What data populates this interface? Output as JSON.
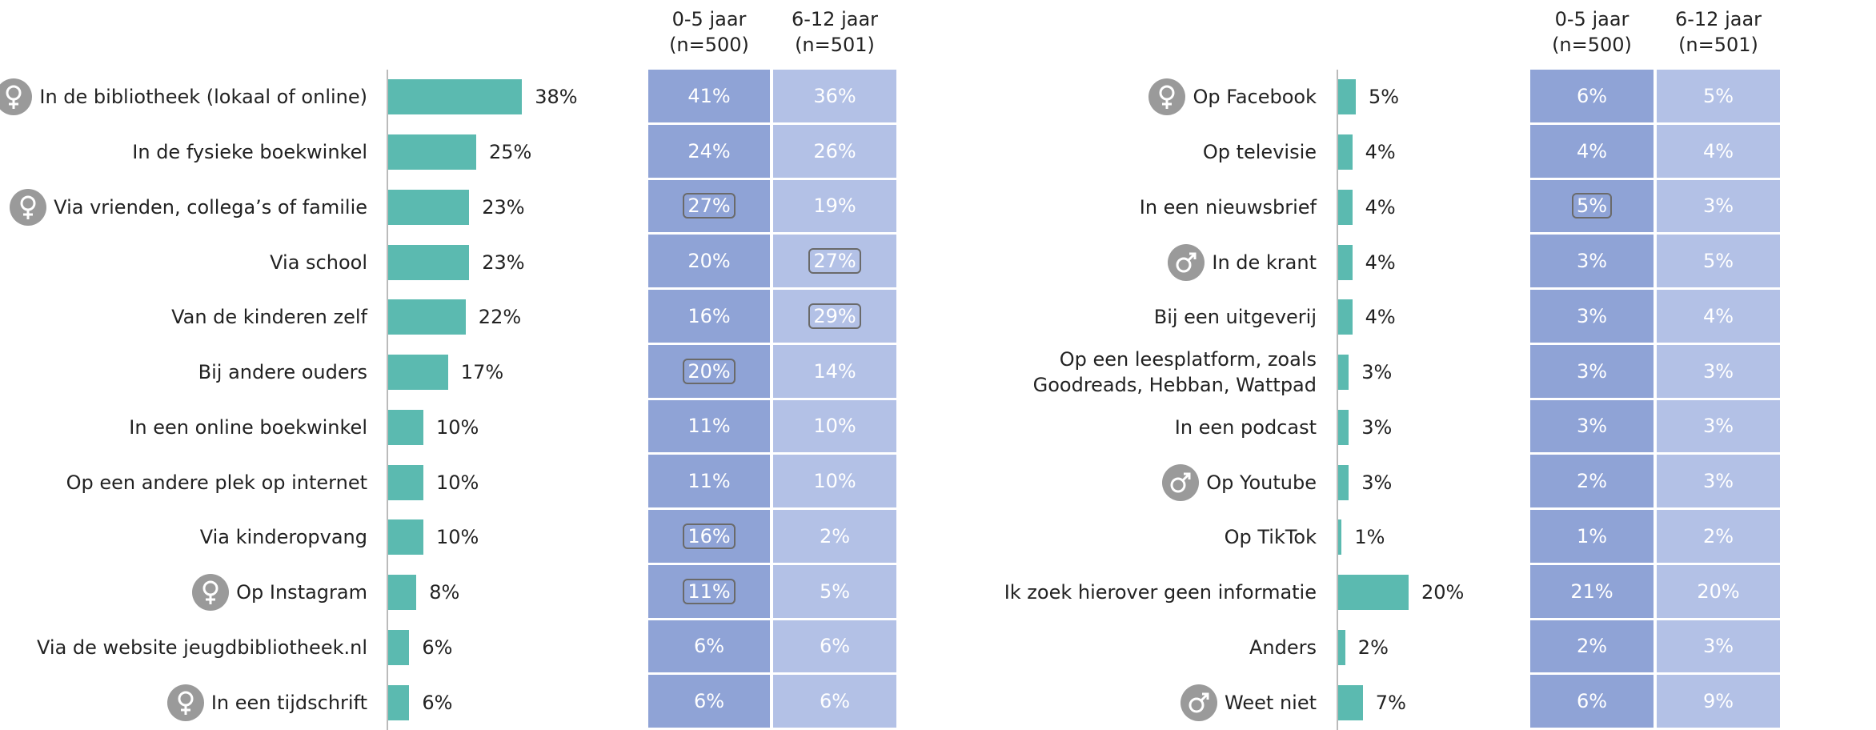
{
  "chart_data": [
    {
      "type": "bar",
      "xlim": [
        0,
        100
      ],
      "color": "#5bbab0",
      "categories": [
        "In de bibliotheek (lokaal of online)",
        "In de fysieke boekwinkel",
        "Via vrienden, collega’s of familie",
        "Via school",
        "Van de kinderen zelf",
        "Bij andere ouders",
        "In een online boekwinkel",
        "Op een andere plek op internet",
        "Via kinderopvang",
        "Op Instagram",
        "Via de website jeugdbibliotheek.nl",
        "In een tijdschrift"
      ],
      "values": [
        38,
        25,
        23,
        23,
        22,
        17,
        10,
        10,
        10,
        8,
        6,
        6
      ],
      "value_labels": [
        "38%",
        "25%",
        "23%",
        "23%",
        "22%",
        "17%",
        "10%",
        "10%",
        "10%",
        "8%",
        "6%",
        "6%"
      ],
      "icons": [
        "female",
        null,
        "female",
        null,
        null,
        null,
        null,
        null,
        null,
        "female",
        null,
        "female"
      ],
      "table": [
        {
          "header": [
            "0-5 jaar",
            "(n=500)"
          ],
          "color": "#8fa3d6",
          "values": [
            41,
            24,
            27,
            20,
            16,
            20,
            11,
            11,
            16,
            11,
            6,
            6
          ],
          "value_labels": [
            "41%",
            "24%",
            "27%",
            "20%",
            "16%",
            "20%",
            "11%",
            "11%",
            "16%",
            "11%",
            "6%",
            "6%"
          ],
          "boxed": [
            false,
            false,
            true,
            false,
            false,
            true,
            false,
            false,
            true,
            true,
            false,
            false
          ]
        },
        {
          "header": [
            "6-12 jaar",
            "(n=501)"
          ],
          "color": "#b3c1e6",
          "values": [
            36,
            26,
            19,
            27,
            29,
            14,
            10,
            10,
            2,
            5,
            6,
            6
          ],
          "value_labels": [
            "36%",
            "26%",
            "19%",
            "27%",
            "29%",
            "14%",
            "10%",
            "10%",
            "2%",
            "5%",
            "6%",
            "6%"
          ],
          "boxed": [
            false,
            false,
            false,
            true,
            true,
            false,
            false,
            false,
            false,
            false,
            false,
            false
          ]
        }
      ]
    },
    {
      "type": "bar",
      "xlim": [
        0,
        100
      ],
      "color": "#5bbab0",
      "categories": [
        "Op Facebook",
        "Op televisie",
        "In een nieuwsbrief",
        "In de krant",
        "Bij een uitgeverij",
        "Op een leesplatform, zoals\nGoodreads, Hebban, Wattpad",
        "In een podcast",
        "Op Youtube",
        "Op TikTok",
        "Ik zoek hierover geen informatie",
        "Anders",
        "Weet niet"
      ],
      "values": [
        5,
        4,
        4,
        4,
        4,
        3,
        3,
        3,
        1,
        20,
        2,
        7
      ],
      "value_labels": [
        "5%",
        "4%",
        "4%",
        "4%",
        "4%",
        "3%",
        "3%",
        "3%",
        "1%",
        "20%",
        "2%",
        "7%"
      ],
      "icons": [
        "female",
        null,
        null,
        "male",
        null,
        null,
        null,
        "male",
        null,
        null,
        null,
        "male"
      ],
      "table": [
        {
          "header": [
            "0-5 jaar",
            "(n=500)"
          ],
          "color": "#8fa3d6",
          "values": [
            6,
            4,
            5,
            3,
            3,
            3,
            3,
            2,
            1,
            21,
            2,
            6
          ],
          "value_labels": [
            "6%",
            "4%",
            "5%",
            "3%",
            "3%",
            "3%",
            "3%",
            "2%",
            "1%",
            "21%",
            "2%",
            "6%"
          ],
          "boxed": [
            false,
            false,
            true,
            false,
            false,
            false,
            false,
            false,
            false,
            false,
            false,
            false
          ]
        },
        {
          "header": [
            "6-12 jaar",
            "(n=501)"
          ],
          "color": "#b3c1e6",
          "values": [
            5,
            4,
            3,
            5,
            4,
            3,
            3,
            3,
            2,
            20,
            3,
            9
          ],
          "value_labels": [
            "5%",
            "4%",
            "3%",
            "5%",
            "4%",
            "3%",
            "3%",
            "3%",
            "2%",
            "20%",
            "3%",
            "9%"
          ],
          "boxed": [
            false,
            false,
            false,
            false,
            false,
            false,
            false,
            false,
            false,
            false,
            false,
            false
          ]
        }
      ]
    }
  ]
}
